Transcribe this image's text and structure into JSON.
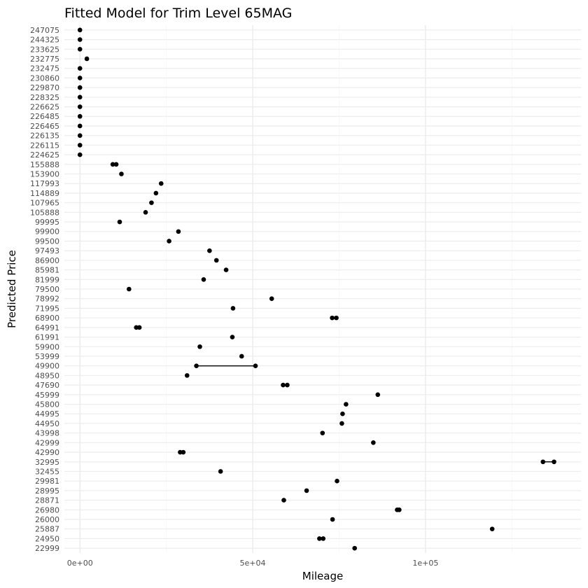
{
  "chart_data": {
    "type": "scatter",
    "title": "Fitted Model for Trim Level 65MAG",
    "xlabel": "Mileage",
    "ylabel": "Predicted Price",
    "xlim": [
      -4500,
      145000
    ],
    "x_ticks": [
      {
        "value": 0,
        "label": "0e+00"
      },
      {
        "value": 50000,
        "label": "5e+04"
      },
      {
        "value": 100000,
        "label": "1e+05"
      }
    ],
    "y_categories": [
      "22999",
      "24950",
      "25887",
      "26000",
      "26980",
      "28871",
      "28995",
      "29981",
      "32455",
      "32995",
      "42990",
      "42999",
      "43998",
      "44950",
      "44995",
      "45800",
      "45999",
      "47690",
      "48950",
      "49900",
      "53999",
      "59900",
      "61991",
      "64991",
      "68900",
      "71995",
      "78992",
      "79500",
      "81999",
      "85981",
      "86900",
      "97493",
      "99500",
      "99900",
      "99995",
      "105888",
      "107965",
      "114889",
      "117993",
      "153900",
      "155888",
      "224625",
      "226115",
      "226135",
      "226465",
      "226485",
      "226625",
      "228325",
      "229870",
      "230860",
      "232475",
      "232775",
      "233625",
      "244325",
      "247075"
    ],
    "points": [
      {
        "y": "247075",
        "x": 0
      },
      {
        "y": "244325",
        "x": 0
      },
      {
        "y": "233625",
        "x": 0
      },
      {
        "y": "232775",
        "x": 2000
      },
      {
        "y": "232475",
        "x": 0
      },
      {
        "y": "230860",
        "x": 0
      },
      {
        "y": "229870",
        "x": 0
      },
      {
        "y": "228325",
        "x": 0
      },
      {
        "y": "226625",
        "x": 0
      },
      {
        "y": "226485",
        "x": 0
      },
      {
        "y": "226465",
        "x": 0
      },
      {
        "y": "226135",
        "x": 0
      },
      {
        "y": "226115",
        "x": 0
      },
      {
        "y": "224625",
        "x": 0
      },
      {
        "y": "155888",
        "x": 9500
      },
      {
        "y": "155888",
        "x": 10500
      },
      {
        "y": "153900",
        "x": 12000
      },
      {
        "y": "117993",
        "x": 23500
      },
      {
        "y": "114889",
        "x": 22000
      },
      {
        "y": "107965",
        "x": 20700
      },
      {
        "y": "105888",
        "x": 19000
      },
      {
        "y": "99995",
        "x": 11500
      },
      {
        "y": "99900",
        "x": 28500
      },
      {
        "y": "99500",
        "x": 25800
      },
      {
        "y": "97493",
        "x": 37500
      },
      {
        "y": "86900",
        "x": 39500
      },
      {
        "y": "85981",
        "x": 42300
      },
      {
        "y": "81999",
        "x": 35800
      },
      {
        "y": "79500",
        "x": 14200
      },
      {
        "y": "78992",
        "x": 55500
      },
      {
        "y": "71995",
        "x": 44300
      },
      {
        "y": "68900",
        "x": 73000
      },
      {
        "y": "68900",
        "x": 74200
      },
      {
        "y": "64991",
        "x": 16300
      },
      {
        "y": "64991",
        "x": 17200
      },
      {
        "y": "61991",
        "x": 44100
      },
      {
        "y": "59900",
        "x": 34700
      },
      {
        "y": "53999",
        "x": 46800
      },
      {
        "y": "49900",
        "x": 33700
      },
      {
        "y": "49900",
        "x": 50800
      },
      {
        "y": "48950",
        "x": 31000
      },
      {
        "y": "47690",
        "x": 58800
      },
      {
        "y": "47690",
        "x": 60000
      },
      {
        "y": "45999",
        "x": 86200
      },
      {
        "y": "45800",
        "x": 77000
      },
      {
        "y": "44995",
        "x": 76000
      },
      {
        "y": "44950",
        "x": 75800
      },
      {
        "y": "43998",
        "x": 70200
      },
      {
        "y": "42999",
        "x": 84900
      },
      {
        "y": "42990",
        "x": 29000
      },
      {
        "y": "42990",
        "x": 29900
      },
      {
        "y": "32995",
        "x": 134000
      },
      {
        "y": "32995",
        "x": 137200
      },
      {
        "y": "32455",
        "x": 40700
      },
      {
        "y": "29981",
        "x": 74400
      },
      {
        "y": "28995",
        "x": 65600
      },
      {
        "y": "28871",
        "x": 59000
      },
      {
        "y": "26980",
        "x": 91800
      },
      {
        "y": "26980",
        "x": 92400
      },
      {
        "y": "26000",
        "x": 73100
      },
      {
        "y": "25887",
        "x": 119300
      },
      {
        "y": "24950",
        "x": 69300
      },
      {
        "y": "24950",
        "x": 70400
      },
      {
        "y": "22999",
        "x": 79500
      }
    ],
    "line_segments": [
      {
        "y": "49900",
        "x1": 33700,
        "x2": 50800
      },
      {
        "y": "32995",
        "x1": 134000,
        "x2": 137200
      }
    ],
    "grid": true,
    "legend": "none"
  }
}
